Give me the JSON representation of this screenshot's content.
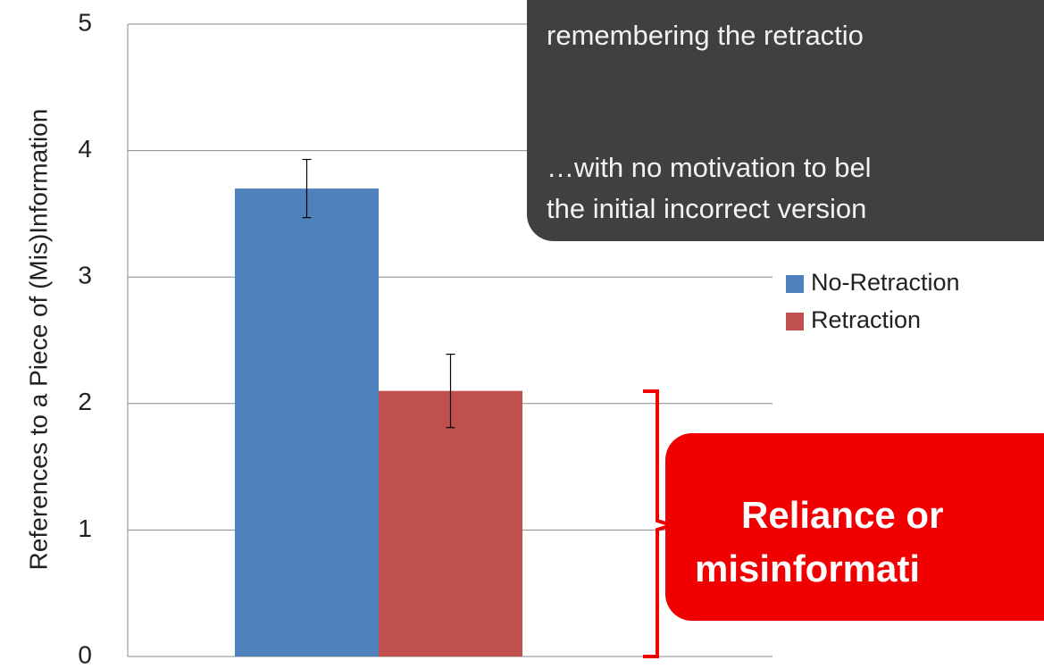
{
  "chart_data": {
    "type": "bar",
    "y_label": "References to a Piece of (Mis)Information",
    "series": [
      {
        "name": "No-Retraction",
        "color": "#4f81bd",
        "values": [
          3.7
        ],
        "errors": [
          0.23
        ]
      },
      {
        "name": "Retraction",
        "color": "#c0504d",
        "values": [
          2.1
        ],
        "errors": [
          0.29
        ]
      }
    ],
    "ylim": [
      0,
      5
    ],
    "yticks": [
      0,
      1,
      2,
      3,
      4,
      5
    ],
    "grid": true,
    "legend": "right",
    "annotations": {
      "dark_box": [
        "remembering the retractio",
        "…with no motivation to bel",
        "the initial incorrect version"
      ],
      "red_box": [
        "Reliance or",
        "misinformati"
      ]
    }
  }
}
